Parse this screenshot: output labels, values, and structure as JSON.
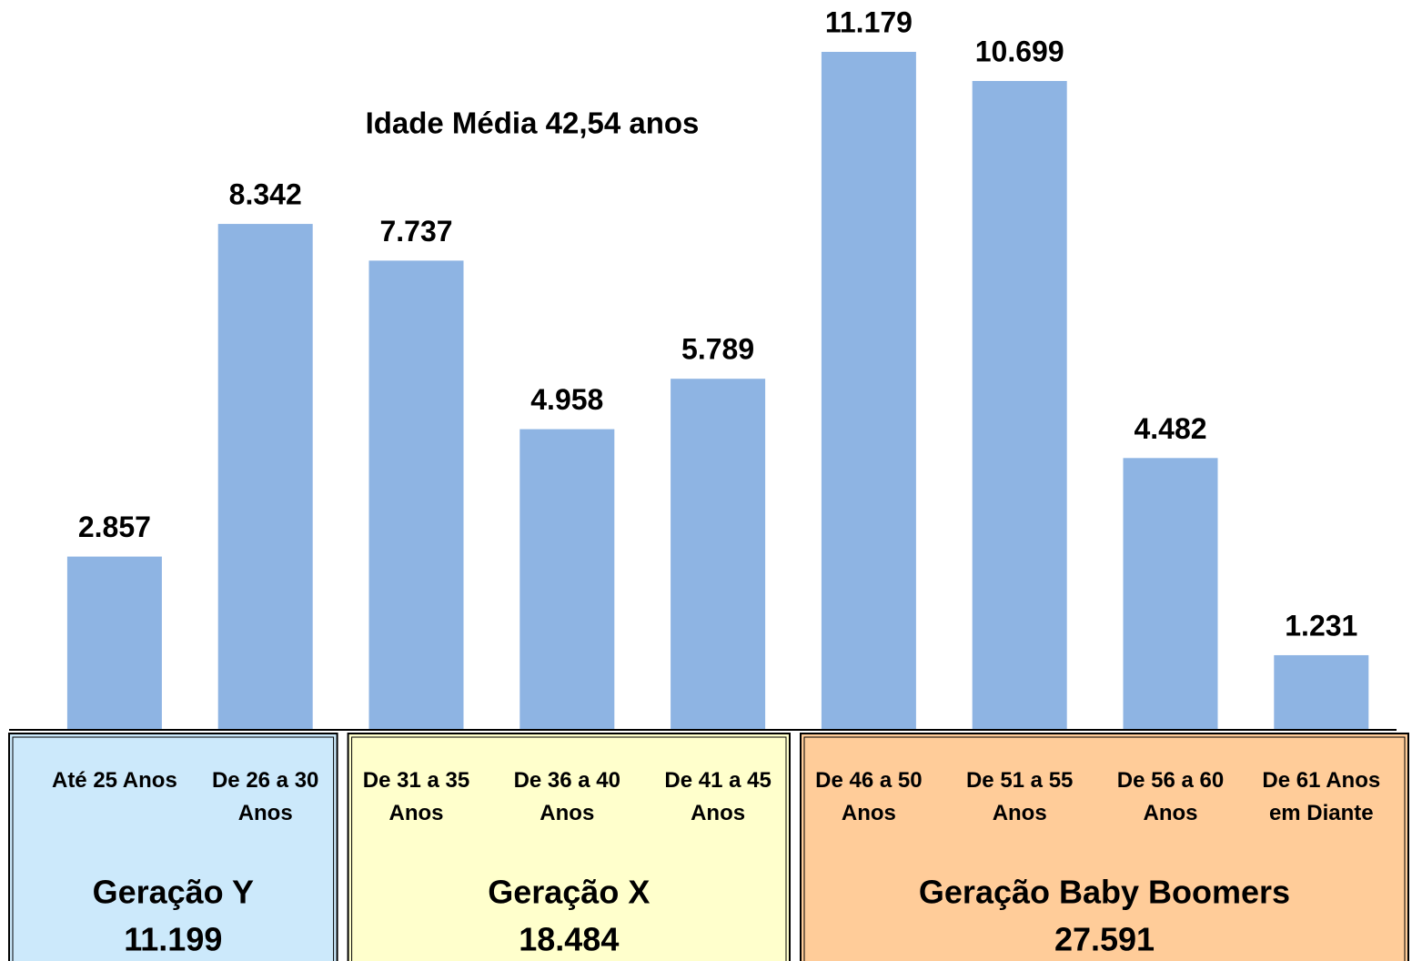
{
  "chart_data": {
    "type": "bar",
    "annotation": "Idade Média  42,54 anos",
    "color": "#8eb4e3",
    "groups": [
      {
        "name": "Geração Y",
        "total": {
          "value": 11199,
          "label": "11.199"
        },
        "color": "#cce9fb",
        "categories": [
          "Até 25 Anos",
          "De 26 a 30 Anos"
        ],
        "values": [
          2857,
          8342
        ],
        "value_labels": [
          "2.857",
          "8.342"
        ]
      },
      {
        "name": "Geração X",
        "total": {
          "value": 18484,
          "label": "18.484"
        },
        "color": "#ffffcc",
        "categories": [
          "De 31 a 35 Anos",
          "De 36 a 40 Anos",
          "De 41 a 45 Anos"
        ],
        "values": [
          7737,
          4958,
          5789
        ],
        "value_labels": [
          "7.737",
          "4.958",
          "5.789"
        ]
      },
      {
        "name": "Geração Baby Boomers",
        "total": {
          "value": 27591,
          "label": "27.591"
        },
        "color": "#ffcc99",
        "categories": [
          "De 46 a 50 Anos",
          "De 51 a 55 Anos",
          "De 56 a 60 Anos",
          "De 61 Anos em Diante"
        ],
        "values": [
          11179,
          10699,
          4482,
          1231
        ],
        "value_labels": [
          "11.179",
          "10.699",
          "4.482",
          "1.231"
        ]
      }
    ]
  }
}
